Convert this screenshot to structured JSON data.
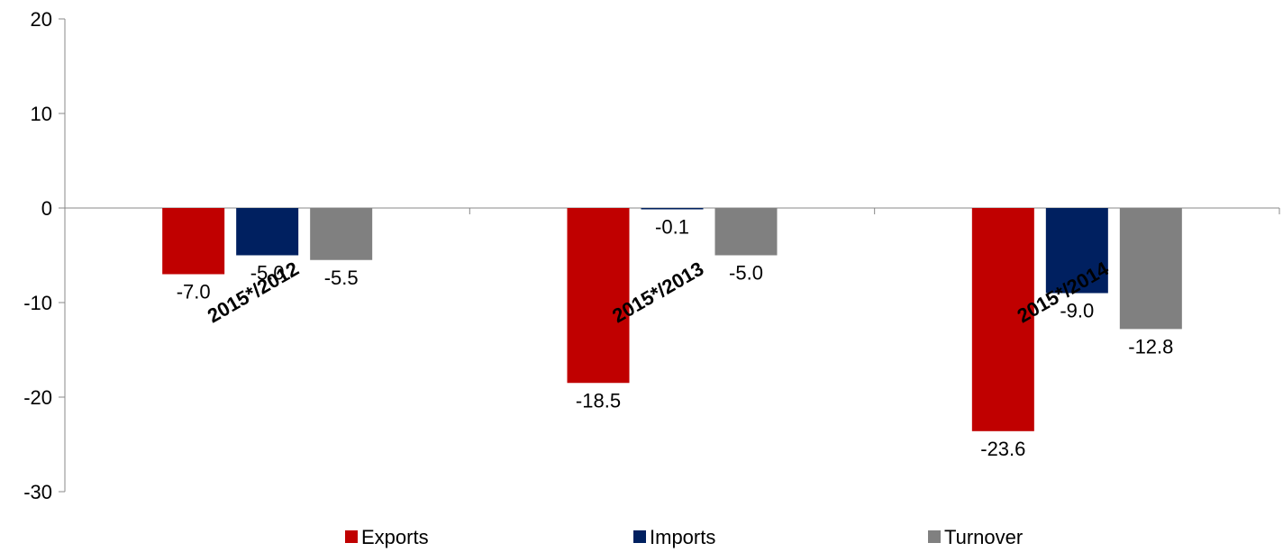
{
  "chart_data": {
    "type": "bar",
    "categories": [
      "2015*/2012",
      "2015*/2013",
      "2015*/2014"
    ],
    "series": [
      {
        "name": "Exports",
        "color": "#c00000",
        "values": [
          -7.0,
          -18.5,
          -23.6
        ],
        "labels": [
          "-7.0",
          "-18.5",
          "-23.6"
        ]
      },
      {
        "name": "Imports",
        "color": "#002060",
        "values": [
          -5.0,
          -0.1,
          -9.0
        ],
        "labels": [
          "-5.0",
          "-0.1",
          "-9.0"
        ]
      },
      {
        "name": "Turnover",
        "color": "#808080",
        "values": [
          -5.5,
          -5.0,
          -12.8
        ],
        "labels": [
          "-5.5",
          "-5.0",
          "-12.8"
        ]
      }
    ],
    "ylim": [
      -30,
      20
    ],
    "yticks": [
      20,
      10,
      0,
      -10,
      -20,
      -30
    ],
    "ytick_labels": [
      "20",
      "10",
      "0",
      "-10",
      "-20",
      "-30"
    ],
    "grid": false,
    "legend_position": "bottom",
    "category_label_rotation": -30
  }
}
